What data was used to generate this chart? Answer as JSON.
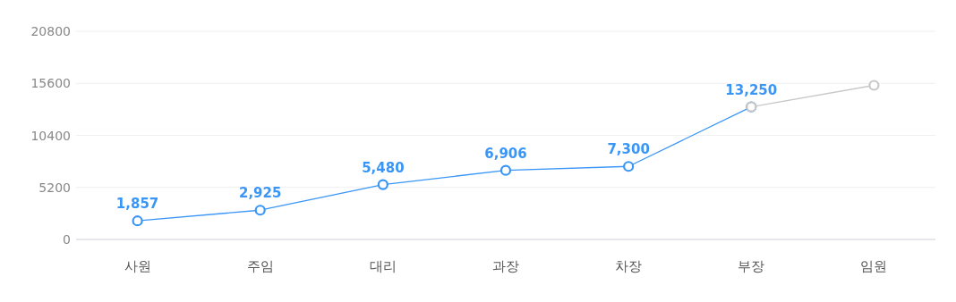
{
  "chart_data": {
    "type": "line",
    "categories": [
      "사원",
      "주임",
      "대리",
      "과장",
      "차장",
      "부장",
      "임원"
    ],
    "series": [
      {
        "color": "#3a96f6",
        "values": [
          1857,
          2925,
          5480,
          6906,
          7300,
          13250,
          null
        ],
        "value_labels": [
          "1,857",
          "2,925",
          "5,480",
          "6,906",
          "7,300",
          "13,250",
          null
        ]
      },
      {
        "color": "#c8c8c8",
        "values": [
          null,
          null,
          null,
          null,
          null,
          13250,
          15400
        ]
      }
    ],
    "ylim": [
      0,
      20800
    ],
    "yticks": [
      0,
      5200,
      10400,
      15600,
      20800
    ],
    "grid": "y",
    "marker": "circle",
    "line_style": "solid"
  }
}
